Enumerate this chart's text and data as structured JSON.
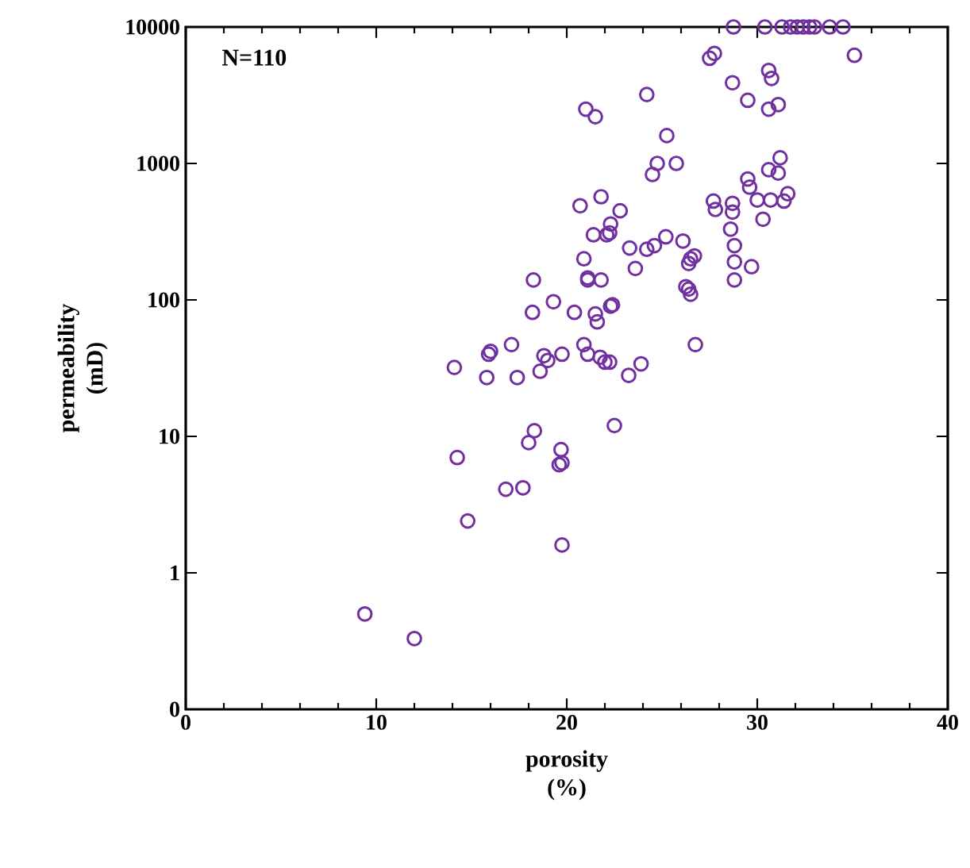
{
  "chart_data": {
    "type": "scatter",
    "xlabel": "porosity (%)",
    "ylabel": "permeability (mD)",
    "annotations": [
      "N=110"
    ],
    "x": [
      28.75,
      30.4,
      31.3,
      31.75,
      32.1,
      32.4,
      32.75,
      33,
      33.8,
      34.5,
      35.1,
      27.5,
      27.75,
      28.7,
      30.6,
      30.75,
      29.5,
      30.6,
      31.1,
      21,
      21.5,
      24.2,
      25.25,
      24.75,
      24.5,
      25.75,
      31.2,
      30.6,
      31.1,
      29.5,
      29.6,
      30,
      30.7,
      31.6,
      31.4,
      30.3,
      27.7,
      27.8,
      28.7,
      28.7,
      28.6,
      28.8,
      28.8,
      29.7,
      28.8,
      21.8,
      20.7,
      22.8,
      22.3,
      21.4,
      22.1,
      22.25,
      25.2,
      26.1,
      23.3,
      24.2,
      24.6,
      26.7,
      26.5,
      26.4,
      20.9,
      23.6,
      21.1,
      21.1,
      21.8,
      18.25,
      26.25,
      26.4,
      26.5,
      19.3,
      18.2,
      20.4,
      21.5,
      21.6,
      22.3,
      22.4,
      26.75,
      16,
      15.9,
      17.1,
      20.9,
      18.8,
      19,
      19.75,
      21.1,
      21.75,
      22,
      22.25,
      23.9,
      14.1,
      15.8,
      17.4,
      18.6,
      23.25,
      22.5,
      18.3,
      18,
      14.25,
      19.7,
      19.6,
      19.75,
      16.8,
      17.7,
      14.8,
      19.75,
      9.4,
      12
    ],
    "series": [
      {
        "color": "#7030a0",
        "values": [
          10000,
          10000,
          10000,
          10000,
          10000,
          10000,
          10000,
          10000,
          10000,
          10000,
          6200,
          5900,
          6400,
          3900,
          4800,
          4200,
          2900,
          2500,
          2700,
          2500,
          2200,
          3200,
          1600,
          1000,
          830,
          1000,
          1100,
          900,
          850,
          770,
          670,
          540,
          540,
          600,
          530,
          390,
          530,
          460,
          510,
          440,
          330,
          250,
          190,
          175,
          140,
          570,
          490,
          450,
          360,
          300,
          300,
          310,
          290,
          270,
          240,
          235,
          250,
          210,
          200,
          185,
          200,
          170,
          145,
          140,
          140,
          140,
          125,
          120,
          110,
          97,
          81,
          81,
          79,
          69,
          90,
          92,
          47,
          42,
          40,
          47,
          47,
          39,
          36,
          40,
          40,
          38,
          35,
          35,
          34,
          32,
          27,
          27,
          30,
          28,
          12,
          11,
          9,
          7,
          8,
          6.2,
          6.4,
          4.1,
          4.2,
          2.4,
          1.6,
          0.5,
          0.33
        ]
      }
    ],
    "marker": "circle",
    "log": "y",
    "grid": false,
    "xlim": [
      0,
      40
    ],
    "xticks": [
      0,
      10,
      20,
      30,
      40
    ],
    "ylim": [
      0.1,
      10000
    ],
    "yticks": [
      {
        "value": 0.1,
        "label": "0"
      },
      1,
      10,
      100,
      1000,
      10000
    ]
  }
}
